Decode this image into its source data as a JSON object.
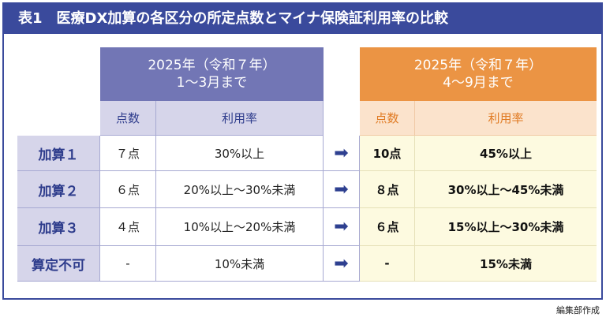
{
  "title": "表1　医療DX加算の各区分の所定点数とマイナ保険証利用率の比較",
  "before": {
    "period_line1": "2025年（令和７年）",
    "period_line2": "1～3月まで",
    "col_points": "点数",
    "col_rate": "利用率"
  },
  "after": {
    "period_line1": "2025年（令和７年）",
    "period_line2": "4～9月まで",
    "col_points": "点数",
    "col_rate": "利用率"
  },
  "rows": [
    {
      "label": "加算１",
      "before_points": "７点",
      "before_rate": "30%以上",
      "after_points": "10点",
      "after_rate": "45%以上"
    },
    {
      "label": "加算２",
      "before_points": "６点",
      "before_rate": "20%以上～30%未満",
      "after_points": "８点",
      "after_rate": "30%以上～45%未満"
    },
    {
      "label": "加算３",
      "before_points": "４点",
      "before_rate": "10%以上～20%未満",
      "after_points": "６点",
      "after_rate": "15%以上～30%未満"
    },
    {
      "label": "算定不可",
      "before_points": "-",
      "before_rate": "10%未満",
      "after_points": "-",
      "after_rate": "15%未満"
    }
  ],
  "arrow_icon": "right-arrow-icon",
  "footer": "編集部作成",
  "colors": {
    "title_bar": "#3a4a9c",
    "before_header": "#7276b5",
    "after_header": "#eb9444",
    "after_body": "#fdfae0"
  }
}
